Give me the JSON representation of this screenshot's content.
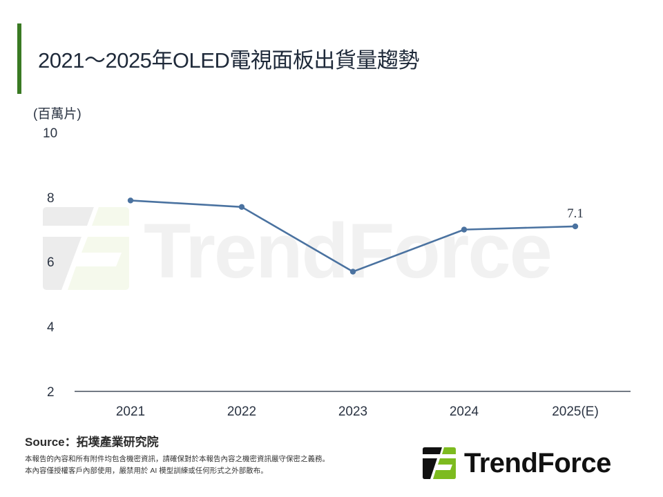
{
  "header": {
    "title": "2021～2025年OLED電視面板出貨量趨勢",
    "accent_color": "#3a7a23"
  },
  "chart_data": {
    "type": "line",
    "title": "2021～2025年OLED電視面板出貨量趨勢",
    "xlabel": "",
    "ylabel": "(百萬片)",
    "categories": [
      "2021",
      "2022",
      "2023",
      "2024",
      "2025(E)"
    ],
    "series": [
      {
        "name": "OLED電視面板出貨量",
        "values": [
          7.9,
          7.7,
          5.7,
          7.0,
          7.1
        ],
        "color": "#4a72a0"
      }
    ],
    "ylim": [
      2,
      10
    ],
    "yticks": [
      "10",
      "8",
      "6",
      "4",
      "2"
    ],
    "annotations": [
      {
        "category": "2025(E)",
        "text": "7.1"
      }
    ],
    "grid": false,
    "legend": "none"
  },
  "axis": {
    "unit_label": "(百萬片)",
    "y_ticks": [
      "10",
      "8",
      "6",
      "4",
      "2"
    ],
    "x_ticks": [
      "2021",
      "2022",
      "2023",
      "2024",
      "2025(E)"
    ],
    "last_point_label": "7.1"
  },
  "watermark": {
    "text": "TrendForce"
  },
  "footer": {
    "source": "Source：拓墣產業研究院",
    "disclaimer_line1": "本報告的內容和所有附件均包含機密資訊，請確保對於本報告內容之機密資訊嚴守保密之義務。",
    "disclaimer_line2": "本內容僅授權客戶內部使用，嚴禁用於 AI 模型訓練或任何形式之外部散布。",
    "logo_text": "TrendForce",
    "logo_green": "#7dbb1f",
    "logo_black": "#111111"
  }
}
